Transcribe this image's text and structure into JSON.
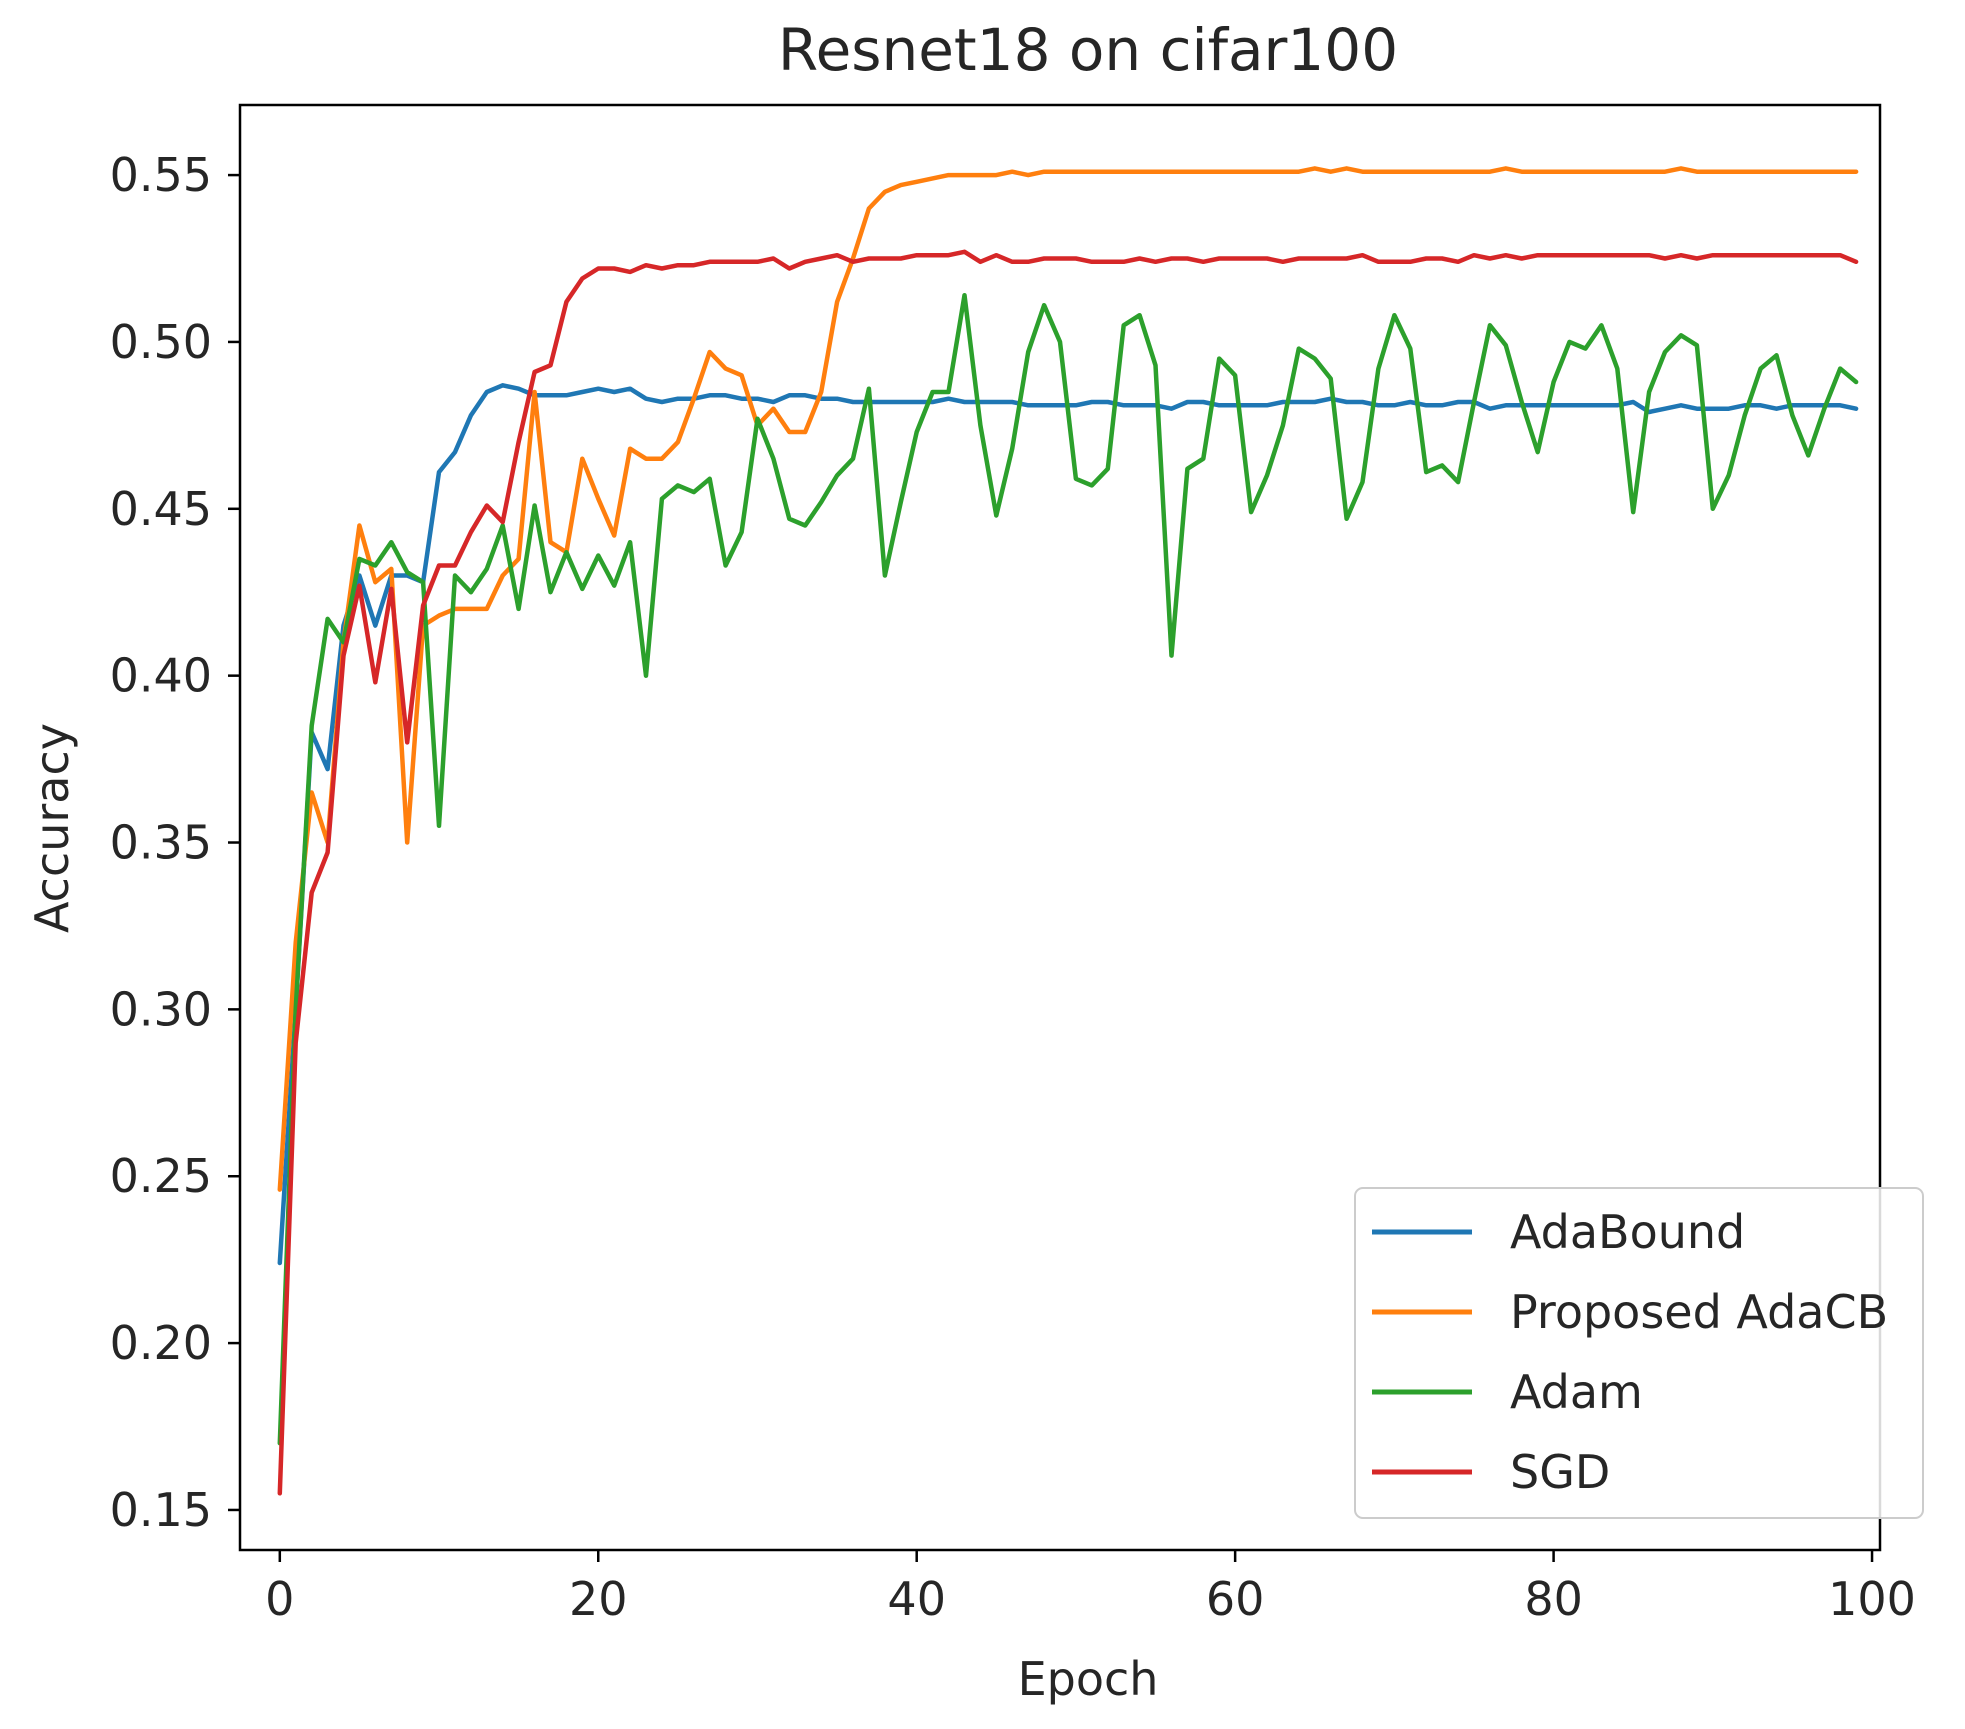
{
  "chart_data": {
    "type": "line",
    "title": "Resnet18 on cifar100",
    "xlabel": "Epoch",
    "ylabel": "Accuracy",
    "xlim": [
      -2.5,
      100.5
    ],
    "ylim": [
      0.138,
      0.571
    ],
    "xticks": [
      0,
      20,
      40,
      60,
      80,
      100
    ],
    "yticks": [
      0.15,
      0.2,
      0.25,
      0.3,
      0.35,
      0.4,
      0.45,
      0.5,
      0.55
    ],
    "xtick_labels": [
      "0",
      "20",
      "40",
      "60",
      "80",
      "100"
    ],
    "ytick_labels": [
      "0.15",
      "0.20",
      "0.25",
      "0.30",
      "0.35",
      "0.40",
      "0.45",
      "0.50",
      "0.55"
    ],
    "grid": false,
    "legend_position": "lower-right",
    "series": [
      {
        "name": "AdaBound",
        "color": "#1f77b4",
        "values": [
          0.224,
          0.3,
          0.383,
          0.372,
          0.415,
          0.43,
          0.415,
          0.43,
          0.43,
          0.428,
          0.461,
          0.467,
          0.478,
          0.485,
          0.487,
          0.486,
          0.484,
          0.484,
          0.484,
          0.485,
          0.486,
          0.485,
          0.486,
          0.483,
          0.482,
          0.483,
          0.483,
          0.484,
          0.484,
          0.483,
          0.483,
          0.482,
          0.484,
          0.484,
          0.483,
          0.483,
          0.482,
          0.482,
          0.482,
          0.482,
          0.482,
          0.482,
          0.483,
          0.482,
          0.482,
          0.482,
          0.482,
          0.481,
          0.481,
          0.481,
          0.481,
          0.482,
          0.482,
          0.481,
          0.481,
          0.481,
          0.48,
          0.482,
          0.482,
          0.481,
          0.481,
          0.481,
          0.481,
          0.482,
          0.482,
          0.482,
          0.483,
          0.482,
          0.482,
          0.481,
          0.481,
          0.482,
          0.481,
          0.481,
          0.482,
          0.482,
          0.48,
          0.481,
          0.481,
          0.481,
          0.481,
          0.481,
          0.481,
          0.481,
          0.481,
          0.482,
          0.479,
          0.48,
          0.481,
          0.48,
          0.48,
          0.48,
          0.481,
          0.481,
          0.48,
          0.481,
          0.481,
          0.481,
          0.481,
          0.48
        ]
      },
      {
        "name": "Proposed AdaCB",
        "color": "#ff7f0e",
        "values": [
          0.246,
          0.32,
          0.365,
          0.35,
          0.41,
          0.445,
          0.428,
          0.432,
          0.35,
          0.415,
          0.418,
          0.42,
          0.42,
          0.42,
          0.43,
          0.435,
          0.485,
          0.44,
          0.437,
          0.465,
          0.453,
          0.442,
          0.468,
          0.465,
          0.465,
          0.47,
          0.483,
          0.497,
          0.492,
          0.49,
          0.475,
          0.48,
          0.473,
          0.473,
          0.485,
          0.512,
          0.525,
          0.54,
          0.545,
          0.547,
          0.548,
          0.549,
          0.55,
          0.55,
          0.55,
          0.55,
          0.551,
          0.55,
          0.551,
          0.551,
          0.551,
          0.551,
          0.551,
          0.551,
          0.551,
          0.551,
          0.551,
          0.551,
          0.551,
          0.551,
          0.551,
          0.551,
          0.551,
          0.551,
          0.551,
          0.552,
          0.551,
          0.552,
          0.551,
          0.551,
          0.551,
          0.551,
          0.551,
          0.551,
          0.551,
          0.551,
          0.551,
          0.552,
          0.551,
          0.551,
          0.551,
          0.551,
          0.551,
          0.551,
          0.551,
          0.551,
          0.551,
          0.551,
          0.552,
          0.551,
          0.551,
          0.551,
          0.551,
          0.551,
          0.551,
          0.551,
          0.551,
          0.551,
          0.551,
          0.551
        ]
      },
      {
        "name": "Adam",
        "color": "#2ca02c",
        "values": [
          0.17,
          0.3,
          0.385,
          0.417,
          0.41,
          0.435,
          0.433,
          0.44,
          0.431,
          0.428,
          0.355,
          0.43,
          0.425,
          0.432,
          0.445,
          0.42,
          0.451,
          0.425,
          0.437,
          0.426,
          0.436,
          0.427,
          0.44,
          0.4,
          0.453,
          0.457,
          0.455,
          0.459,
          0.433,
          0.443,
          0.477,
          0.465,
          0.447,
          0.445,
          0.452,
          0.46,
          0.465,
          0.486,
          0.43,
          0.452,
          0.473,
          0.485,
          0.485,
          0.514,
          0.475,
          0.448,
          0.468,
          0.497,
          0.511,
          0.5,
          0.459,
          0.457,
          0.462,
          0.505,
          0.508,
          0.493,
          0.406,
          0.462,
          0.465,
          0.495,
          0.49,
          0.449,
          0.46,
          0.475,
          0.498,
          0.495,
          0.489,
          0.447,
          0.458,
          0.492,
          0.508,
          0.498,
          0.461,
          0.463,
          0.458,
          0.482,
          0.505,
          0.499,
          0.482,
          0.467,
          0.488,
          0.5,
          0.498,
          0.505,
          0.492,
          0.449,
          0.485,
          0.497,
          0.502,
          0.499,
          0.45,
          0.46,
          0.478,
          0.492,
          0.496,
          0.478,
          0.466,
          0.48,
          0.492,
          0.488
        ]
      },
      {
        "name": "SGD",
        "color": "#d62728",
        "values": [
          0.155,
          0.29,
          0.335,
          0.347,
          0.406,
          0.427,
          0.398,
          0.426,
          0.38,
          0.421,
          0.433,
          0.433,
          0.443,
          0.451,
          0.446,
          0.47,
          0.491,
          0.493,
          0.512,
          0.519,
          0.522,
          0.522,
          0.521,
          0.523,
          0.522,
          0.523,
          0.523,
          0.524,
          0.524,
          0.524,
          0.524,
          0.525,
          0.522,
          0.524,
          0.525,
          0.526,
          0.524,
          0.525,
          0.525,
          0.525,
          0.526,
          0.526,
          0.526,
          0.527,
          0.524,
          0.526,
          0.524,
          0.524,
          0.525,
          0.525,
          0.525,
          0.524,
          0.524,
          0.524,
          0.525,
          0.524,
          0.525,
          0.525,
          0.524,
          0.525,
          0.525,
          0.525,
          0.525,
          0.524,
          0.525,
          0.525,
          0.525,
          0.525,
          0.526,
          0.524,
          0.524,
          0.524,
          0.525,
          0.525,
          0.524,
          0.526,
          0.525,
          0.526,
          0.525,
          0.526,
          0.526,
          0.526,
          0.526,
          0.526,
          0.526,
          0.526,
          0.526,
          0.525,
          0.526,
          0.525,
          0.526,
          0.526,
          0.526,
          0.526,
          0.526,
          0.526,
          0.526,
          0.526,
          0.526,
          0.524
        ]
      }
    ]
  }
}
